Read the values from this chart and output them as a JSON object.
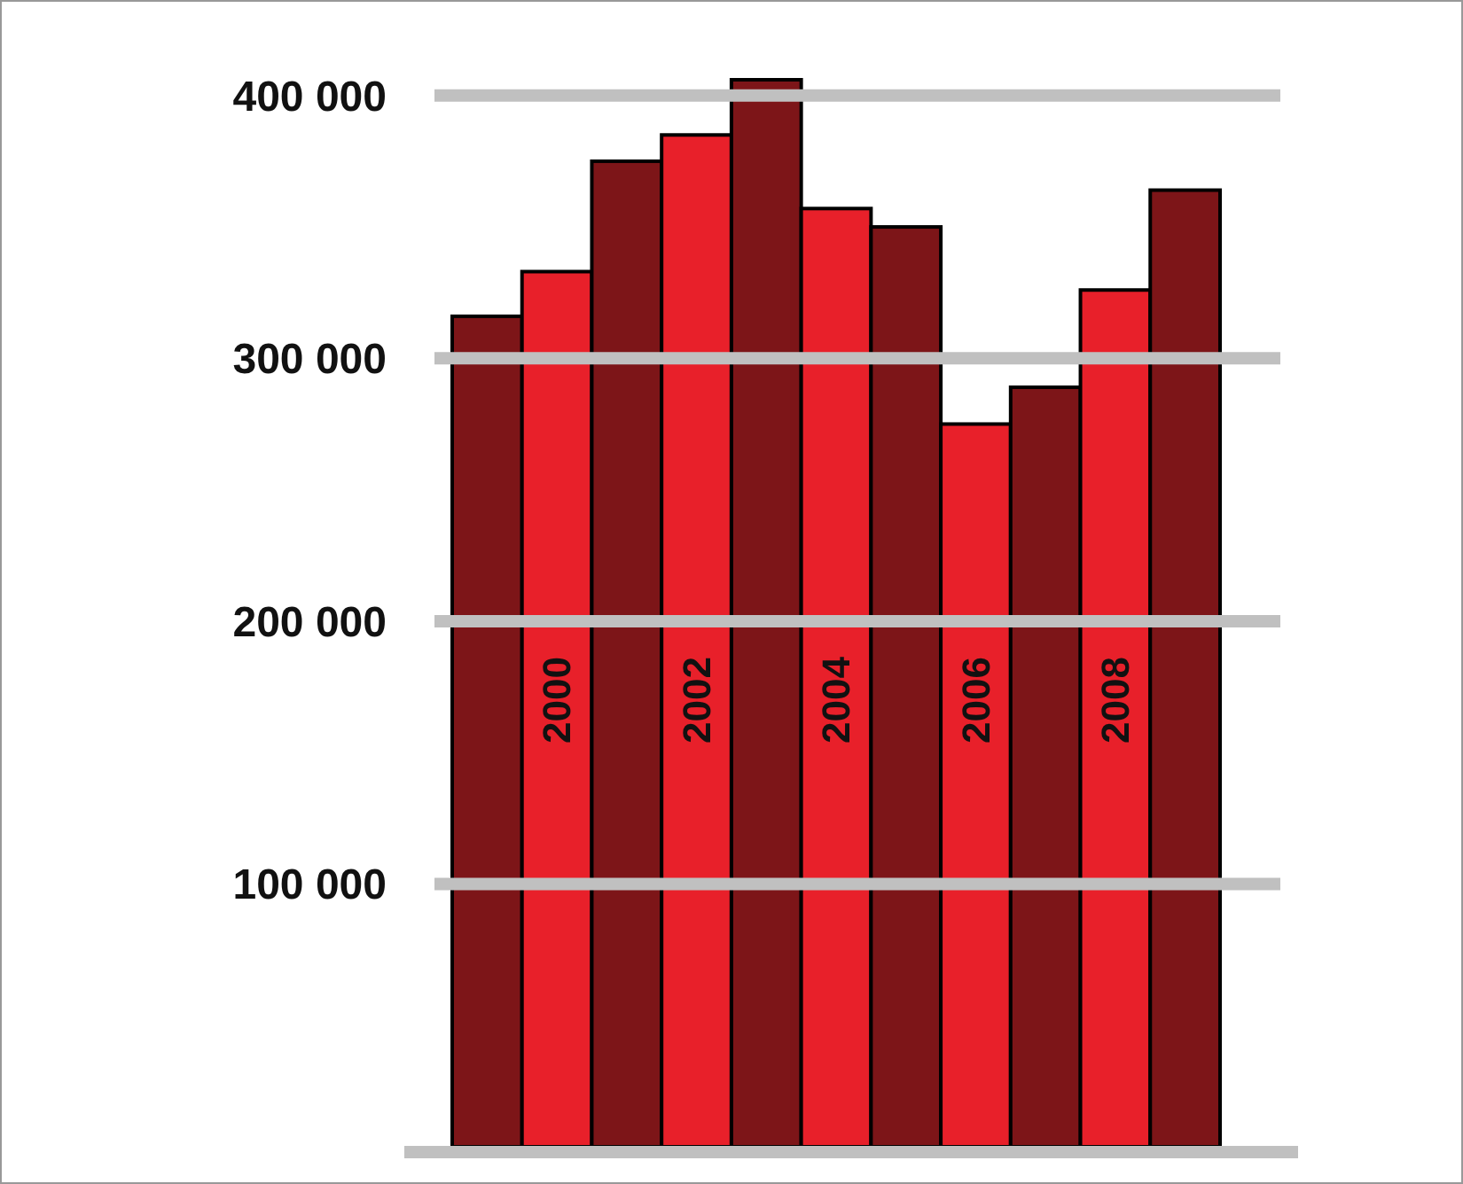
{
  "chart_data": {
    "type": "bar",
    "categories": [
      null,
      "2000",
      null,
      "2002",
      null,
      "2004",
      null,
      "2006",
      null,
      "2008",
      null
    ],
    "values": [
      316000,
      333000,
      375000,
      385000,
      406000,
      357000,
      350000,
      275000,
      289000,
      326000,
      364000
    ],
    "colors": [
      "#7d1518",
      "#e8202a",
      "#7d1518",
      "#e8202a",
      "#7d1518",
      "#e8202a",
      "#7d1518",
      "#e8202a",
      "#7d1518",
      "#e8202a",
      "#7d1518"
    ],
    "yticks": [
      {
        "value": 100000,
        "label": "100 000"
      },
      {
        "value": 200000,
        "label": "200 000"
      },
      {
        "value": 300000,
        "label": "300 000"
      },
      {
        "value": 400000,
        "label": "400 000"
      }
    ],
    "ylim": [
      0,
      406000
    ],
    "grid": "y"
  }
}
